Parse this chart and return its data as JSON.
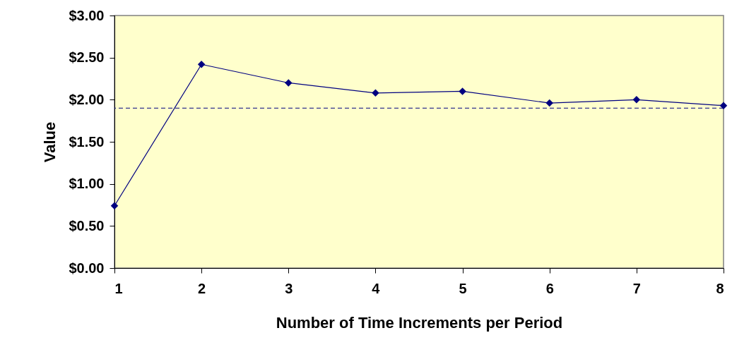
{
  "chart_data": {
    "type": "line",
    "xlabel": "Number of Time Increments per Period",
    "ylabel": "Value",
    "x": [
      1,
      2,
      3,
      4,
      5,
      6,
      7,
      8
    ],
    "series": [
      {
        "color": "#000080",
        "values": [
          0.74,
          2.42,
          2.2,
          2.08,
          2.1,
          1.96,
          2.0,
          1.93
        ]
      }
    ],
    "xlim": [
      1,
      8
    ],
    "xticks": [
      1,
      2,
      3,
      4,
      5,
      6,
      7,
      8
    ],
    "ylim": [
      0,
      3
    ],
    "yticks": [
      {
        "value": 0,
        "label": "$0.00"
      },
      {
        "value": 0.5,
        "label": "$0.50"
      },
      {
        "value": 1,
        "label": "$1.00"
      },
      {
        "value": 1.5,
        "label": "$1.50"
      },
      {
        "value": 2,
        "label": "$2.00"
      },
      {
        "value": 2.5,
        "label": "$2.50"
      },
      {
        "value": 3,
        "label": "$3.00"
      }
    ],
    "ref_lines": [
      {
        "axis": "y",
        "value": 1.9,
        "color": "#000080",
        "line_style": "dashed"
      }
    ],
    "grid": false,
    "marker": "diamond",
    "line_style": "solid"
  }
}
